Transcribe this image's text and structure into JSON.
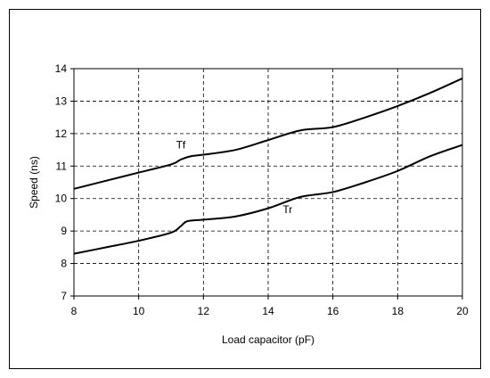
{
  "chart_data": {
    "type": "line",
    "title": "",
    "xlabel": "Load capacitor (pF)",
    "ylabel": "Speed (ns)",
    "xlim": [
      8,
      20
    ],
    "ylim": [
      7,
      14
    ],
    "x_ticks": [
      8,
      10,
      12,
      14,
      16,
      18,
      20
    ],
    "y_ticks": [
      7,
      8,
      9,
      10,
      11,
      12,
      13,
      14
    ],
    "grid": "dashed",
    "legend": "none",
    "series": [
      {
        "name": "Tf",
        "color": "#000000",
        "points": [
          [
            8,
            10.3
          ],
          [
            9,
            10.55
          ],
          [
            10,
            10.8
          ],
          [
            11,
            11.05
          ],
          [
            11.3,
            11.2
          ],
          [
            11.6,
            11.3
          ],
          [
            12,
            11.35
          ],
          [
            13,
            11.5
          ],
          [
            14,
            11.8
          ],
          [
            15,
            12.1
          ],
          [
            16,
            12.2
          ],
          [
            17,
            12.5
          ],
          [
            18,
            12.85
          ],
          [
            19,
            13.25
          ],
          [
            20,
            13.7
          ]
        ]
      },
      {
        "name": "Tr",
        "color": "#000000",
        "points": [
          [
            8,
            8.3
          ],
          [
            9,
            8.5
          ],
          [
            10,
            8.7
          ],
          [
            11,
            8.95
          ],
          [
            11.3,
            9.15
          ],
          [
            11.5,
            9.3
          ],
          [
            12,
            9.35
          ],
          [
            13,
            9.45
          ],
          [
            14,
            9.7
          ],
          [
            15,
            10.05
          ],
          [
            16,
            10.2
          ],
          [
            17,
            10.5
          ],
          [
            18,
            10.85
          ],
          [
            19,
            11.3
          ],
          [
            20,
            11.65
          ]
        ]
      }
    ],
    "annotations": [
      {
        "text": "Tf",
        "x": 11.3,
        "y": 11.55
      },
      {
        "text": "Tr",
        "x": 14.6,
        "y": 9.55
      }
    ]
  }
}
